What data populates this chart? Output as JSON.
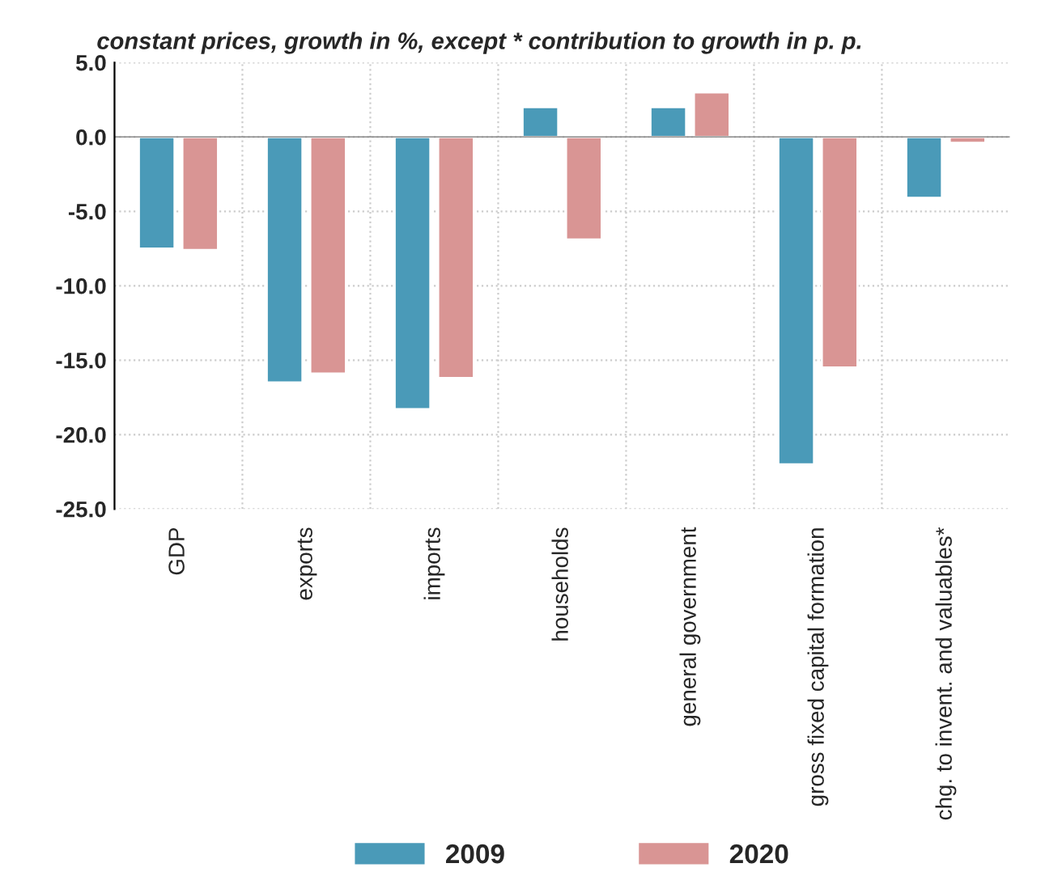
{
  "chart_data": {
    "type": "bar",
    "title": "constant prices, growth in %, except * contribution to growth in p. p.",
    "categories": [
      "GDP",
      "exports",
      "imports",
      "households",
      "general government",
      "gross fixed capital formation",
      "chg. to invent. and valuables*"
    ],
    "series": [
      {
        "name": "2009",
        "color": "#4a9ab8",
        "values": [
          -7.5,
          -16.5,
          -18.3,
          2.0,
          2.0,
          -22.0,
          -4.1
        ]
      },
      {
        "name": "2020",
        "color": "#d99594",
        "values": [
          -7.6,
          -15.9,
          -16.2,
          -6.9,
          3.0,
          -15.5,
          -0.4
        ]
      }
    ],
    "ylim": [
      -25,
      5
    ],
    "yticks": [
      {
        "value": 5,
        "label": "5.0"
      },
      {
        "value": 0,
        "label": "0.0"
      },
      {
        "value": -5,
        "label": "-5.0"
      },
      {
        "value": -10,
        "label": "-10.0"
      },
      {
        "value": -15,
        "label": "-15.0"
      },
      {
        "value": -20,
        "label": "-20.0"
      },
      {
        "value": -25,
        "label": "-25.0"
      }
    ],
    "grid": true,
    "legend": "bottom"
  }
}
